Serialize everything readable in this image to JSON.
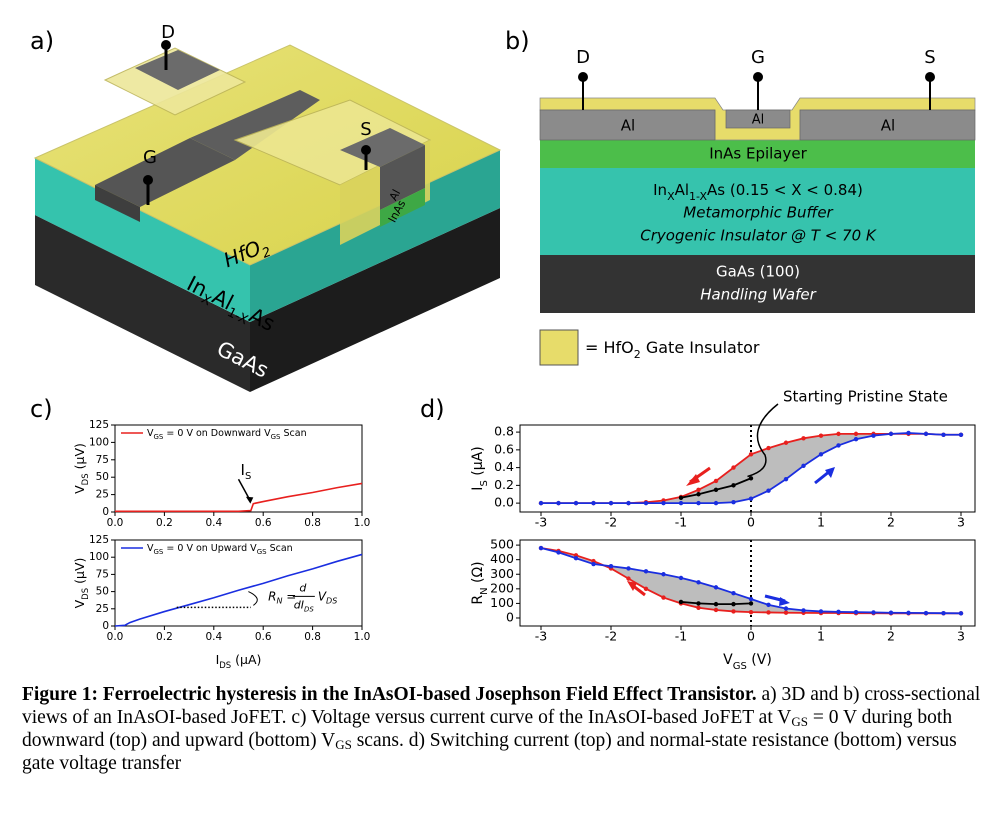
{
  "panel_a": {
    "label": "a)",
    "drain": "D",
    "gate": "G",
    "source": "S",
    "al": "Al",
    "inas": "InAs",
    "hfo2": [
      "HfO",
      "2"
    ],
    "buffer": [
      "In",
      "X",
      "Al",
      "1-X",
      "As"
    ],
    "substrate": [
      "GaAs"
    ]
  },
  "panel_b": {
    "label": "b)",
    "drain": "D",
    "gate": "G",
    "source": "S",
    "al_left": "Al",
    "al_gate": "Al",
    "al_right": "Al",
    "epilayer": "InAs Epilayer",
    "buffer": [
      "In",
      "X",
      "Al",
      "1-X",
      "As (0.15 < X < 0.84)"
    ],
    "buffer_role": "Metamorphic Buffer",
    "buffer_note": "Cryogenic Insulator @ T < 70 K",
    "substrate": "GaAs (100)",
    "substrate_role": "Handling Wafer",
    "legend": [
      "= HfO",
      "2",
      " Gate Insulator"
    ]
  },
  "panel_c": {
    "label": "c)",
    "charts": [
      {
        "type": "line",
        "legend": [
          "V",
          "GS",
          " = 0 V on Downward V",
          "GS",
          " Scan"
        ],
        "ylabel": [
          "V",
          "DS",
          " (μV)"
        ],
        "annotation": [
          "I",
          "S"
        ],
        "xlim": [
          0,
          1
        ],
        "xticks": [
          {
            "value": 0,
            "label": "0.0"
          },
          0.2,
          0.4,
          0.6,
          0.8,
          {
            "value": 1,
            "label": "1.0"
          }
        ],
        "ylim": [
          0,
          125
        ],
        "yticks": [
          0,
          25,
          50,
          75,
          100,
          125
        ],
        "series": [
          {
            "color": "#e8201e",
            "x": [
              0,
              0.1,
              0.2,
              0.3,
              0.4,
              0.5,
              0.55,
              0.56,
              0.6,
              0.7,
              0.8,
              0.9,
              1.0
            ],
            "values": [
              1,
              1,
              1,
              1,
              1,
              1,
              2,
              12,
              15,
              22,
              28,
              35,
              41
            ]
          }
        ]
      },
      {
        "type": "line",
        "legend": [
          "V",
          "GS",
          " = 0 V on Upward V",
          "GS",
          " Scan"
        ],
        "ylabel": [
          "V",
          "DS",
          " (μV)"
        ],
        "xlabel": [
          "I",
          "DS",
          " (μA)"
        ],
        "formula": {
          "lhs": [
            "R",
            "N",
            " ="
          ],
          "num": "d",
          "den": [
            "dI",
            "DS"
          ],
          "rhs": [
            "V",
            "DS"
          ]
        },
        "ref_segment": {
          "x": [
            0.25,
            0.55
          ],
          "y": 27
        },
        "xlim": [
          0,
          1
        ],
        "xticks": [
          {
            "value": 0,
            "label": "0.0"
          },
          0.2,
          0.4,
          0.6,
          0.8,
          {
            "value": 1,
            "label": "1.0"
          }
        ],
        "ylim": [
          0,
          125
        ],
        "yticks": [
          0,
          25,
          50,
          75,
          100,
          125
        ],
        "series": [
          {
            "color": "#1a2ee0",
            "x": [
              0,
              0.04,
              0.06,
              0.1,
              0.2,
              0.3,
              0.4,
              0.5,
              0.6,
              0.7,
              0.8,
              0.9,
              1.0
            ],
            "values": [
              0,
              1,
              5,
              10,
              21,
              31,
              41,
              52,
              62,
              73,
              83,
              94,
              104
            ]
          }
        ]
      }
    ]
  },
  "panel_d": {
    "label": "d)",
    "charts": [
      {
        "type": "line",
        "markers": true,
        "ylabel": [
          "I",
          "S",
          " (μA)"
        ],
        "annotation": "Starting Pristine State",
        "vline": 0,
        "xlim": [
          -3.3,
          3.2
        ],
        "xticks": [
          -3,
          -2,
          -1,
          0,
          1,
          2,
          3
        ],
        "ylim": [
          -0.1,
          0.88
        ],
        "yticks": [
          {
            "value": 0,
            "label": "0.0"
          },
          0.2,
          0.4,
          0.6,
          {
            "value": 0.8,
            "label": "0.8"
          }
        ],
        "series": [
          {
            "color": "#e8201e",
            "x": [
              -3,
              -2.75,
              -2.5,
              -2.25,
              -2,
              -1.75,
              -1.5,
              -1.25,
              -1,
              -0.75,
              -0.5,
              -0.25,
              0,
              0.25,
              0.5,
              0.75,
              1,
              1.25,
              1.5,
              1.75,
              2,
              2.25,
              2.5,
              2.75,
              3
            ],
            "values": [
              0,
              0,
              0,
              0,
              0,
              0,
              0.01,
              0.03,
              0.07,
              0.15,
              0.25,
              0.4,
              0.55,
              0.62,
              0.68,
              0.73,
              0.76,
              0.78,
              0.78,
              0.78,
              0.78,
              0.78,
              0.78,
              0.77,
              0.77
            ]
          },
          {
            "color": "#1a2ee0",
            "x": [
              -3,
              -2.75,
              -2.5,
              -2.25,
              -2,
              -1.75,
              -1.5,
              -1.25,
              -1,
              -0.75,
              -0.5,
              -0.25,
              0,
              0.25,
              0.5,
              0.75,
              1,
              1.25,
              1.5,
              1.75,
              2,
              2.25,
              2.5,
              2.75,
              3
            ],
            "values": [
              0,
              0,
              0,
              0,
              0,
              0,
              0,
              0,
              0,
              0,
              0,
              0.01,
              0.05,
              0.14,
              0.27,
              0.42,
              0.55,
              0.65,
              0.72,
              0.76,
              0.78,
              0.79,
              0.78,
              0.77,
              0.77
            ]
          },
          {
            "color": "#000000",
            "x": [
              -1,
              -0.75,
              -0.5,
              -0.25,
              0
            ],
            "values": [
              0.06,
              0.1,
              0.15,
              0.2,
              0.28
            ]
          }
        ]
      },
      {
        "type": "line",
        "markers": true,
        "ylabel": [
          "R",
          "N",
          " (Ω)"
        ],
        "xlabel": [
          "V",
          "GS",
          " (V)"
        ],
        "vline": 0,
        "xlim": [
          -3.3,
          3.2
        ],
        "xticks": [
          -3,
          -2,
          -1,
          0,
          1,
          2,
          3
        ],
        "ylim": [
          -55,
          535
        ],
        "yticks": [
          0,
          100,
          200,
          300,
          400,
          500
        ],
        "series": [
          {
            "color": "#e8201e",
            "x": [
              -3,
              -2.75,
              -2.5,
              -2.25,
              -2,
              -1.75,
              -1.5,
              -1.25,
              -1,
              -0.75,
              -0.5,
              -0.25,
              0,
              0.25,
              0.5,
              0.75,
              1,
              1.25,
              1.5,
              1.75,
              2,
              2.25,
              2.5,
              2.75,
              3
            ],
            "values": [
              480,
              460,
              430,
              390,
              340,
              270,
              200,
              140,
              100,
              70,
              55,
              45,
              40,
              38,
              36,
              35,
              34,
              34,
              33,
              33,
              32,
              32,
              32,
              32,
              32
            ]
          },
          {
            "color": "#1a2ee0",
            "x": [
              -3,
              -2.75,
              -2.5,
              -2.25,
              -2,
              -1.75,
              -1.5,
              -1.25,
              -1,
              -0.75,
              -0.5,
              -0.25,
              0,
              0.25,
              0.5,
              0.75,
              1,
              1.25,
              1.5,
              1.75,
              2,
              2.25,
              2.5,
              2.75,
              3
            ],
            "values": [
              480,
              450,
              410,
              370,
              355,
              340,
              320,
              300,
              275,
              245,
              210,
              170,
              130,
              90,
              65,
              52,
              45,
              42,
              40,
              38,
              36,
              35,
              34,
              33,
              32
            ]
          },
          {
            "color": "#000000",
            "x": [
              -1,
              -0.75,
              -0.5,
              -0.25,
              0
            ],
            "values": [
              110,
              100,
              95,
              95,
              100
            ]
          }
        ]
      }
    ]
  },
  "caption": {
    "bold": "Figure 1: Ferroelectric hysteresis in the InAsOI-based Josephson Field Effect Transistor.",
    "text": [
      " a) 3D and b) cross-sectional views of an InAsOI-based JoFET. c) Voltage versus current curve of the InAsOI-based JoFET at V",
      "GS",
      " = 0 V during both downward (top) and upward (bottom) V",
      "GS",
      " scans. d) Switching current (top) and normal-state resistance (bottom) versus gate voltage transfer"
    ]
  }
}
